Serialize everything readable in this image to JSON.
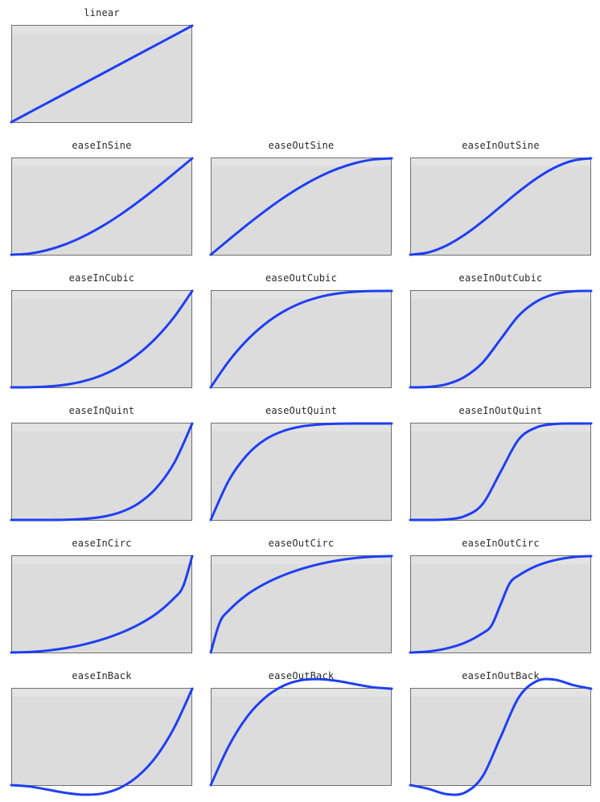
{
  "chart_style": {
    "plot_fill": "#dcdcdc",
    "plot_band": "#e3e3e3",
    "plot_border": "#6e6e6e",
    "curve_color": "#1f3ff2",
    "title_color": "#2b2b2b"
  },
  "chart_data": [
    {
      "type": "line",
      "title": "linear",
      "grid": false,
      "xlim": [
        0,
        1
      ],
      "ylim": [
        0,
        1
      ],
      "row": 0,
      "col": 0,
      "series": [
        {
          "x": [
            0,
            0.25,
            0.5,
            0.75,
            1
          ],
          "y": [
            0,
            0.25,
            0.5,
            0.75,
            1
          ]
        }
      ]
    },
    {
      "type": "line",
      "title": "easeInSine",
      "grid": false,
      "xlim": [
        0,
        1
      ],
      "ylim": [
        0,
        1
      ],
      "row": 1,
      "col": 0,
      "series": [
        {
          "x": [
            0,
            0.1,
            0.2,
            0.3,
            0.4,
            0.5,
            0.6,
            0.7,
            0.8,
            0.9,
            1
          ],
          "y": [
            0,
            0.012,
            0.049,
            0.109,
            0.191,
            0.293,
            0.412,
            0.546,
            0.691,
            0.844,
            1
          ]
        }
      ]
    },
    {
      "type": "line",
      "title": "easeOutSine",
      "grid": false,
      "xlim": [
        0,
        1
      ],
      "ylim": [
        0,
        1
      ],
      "row": 1,
      "col": 1,
      "series": [
        {
          "x": [
            0,
            0.1,
            0.2,
            0.3,
            0.4,
            0.5,
            0.6,
            0.7,
            0.8,
            0.9,
            1
          ],
          "y": [
            0,
            0.156,
            0.309,
            0.454,
            0.588,
            0.707,
            0.809,
            0.891,
            0.951,
            0.988,
            1
          ]
        }
      ]
    },
    {
      "type": "line",
      "title": "easeInOutSine",
      "grid": false,
      "xlim": [
        0,
        1
      ],
      "ylim": [
        0,
        1
      ],
      "row": 1,
      "col": 2,
      "series": [
        {
          "x": [
            0,
            0.1,
            0.2,
            0.3,
            0.4,
            0.5,
            0.6,
            0.7,
            0.8,
            0.9,
            1
          ],
          "y": [
            0,
            0.024,
            0.095,
            0.206,
            0.345,
            0.5,
            0.655,
            0.794,
            0.905,
            0.976,
            1
          ]
        }
      ]
    },
    {
      "type": "line",
      "title": "easeInCubic",
      "grid": false,
      "xlim": [
        0,
        1
      ],
      "ylim": [
        0,
        1
      ],
      "row": 2,
      "col": 0,
      "series": [
        {
          "x": [
            0,
            0.1,
            0.2,
            0.3,
            0.4,
            0.5,
            0.6,
            0.7,
            0.8,
            0.9,
            1
          ],
          "y": [
            0,
            0.001,
            0.008,
            0.027,
            0.064,
            0.125,
            0.216,
            0.343,
            0.512,
            0.729,
            1
          ]
        }
      ]
    },
    {
      "type": "line",
      "title": "easeOutCubic",
      "grid": false,
      "xlim": [
        0,
        1
      ],
      "ylim": [
        0,
        1
      ],
      "row": 2,
      "col": 1,
      "series": [
        {
          "x": [
            0,
            0.1,
            0.2,
            0.3,
            0.4,
            0.5,
            0.6,
            0.7,
            0.8,
            0.9,
            1
          ],
          "y": [
            0,
            0.271,
            0.488,
            0.657,
            0.784,
            0.875,
            0.936,
            0.973,
            0.992,
            0.999,
            1
          ]
        }
      ]
    },
    {
      "type": "line",
      "title": "easeInOutCubic",
      "grid": false,
      "xlim": [
        0,
        1
      ],
      "ylim": [
        0,
        1
      ],
      "row": 2,
      "col": 2,
      "series": [
        {
          "x": [
            0,
            0.1,
            0.2,
            0.3,
            0.4,
            0.5,
            0.6,
            0.7,
            0.8,
            0.9,
            1
          ],
          "y": [
            0,
            0.004,
            0.032,
            0.108,
            0.256,
            0.5,
            0.744,
            0.892,
            0.968,
            0.996,
            1
          ]
        }
      ]
    },
    {
      "type": "line",
      "title": "easeInQuint",
      "grid": false,
      "xlim": [
        0,
        1
      ],
      "ylim": [
        0,
        1
      ],
      "row": 3,
      "col": 0,
      "series": [
        {
          "x": [
            0,
            0.1,
            0.2,
            0.3,
            0.4,
            0.5,
            0.6,
            0.7,
            0.8,
            0.9,
            1
          ],
          "y": [
            0,
            0,
            0,
            0.002,
            0.01,
            0.031,
            0.078,
            0.168,
            0.328,
            0.59,
            1
          ]
        }
      ]
    },
    {
      "type": "line",
      "title": "easeOutQuint",
      "grid": false,
      "xlim": [
        0,
        1
      ],
      "ylim": [
        0,
        1
      ],
      "row": 3,
      "col": 1,
      "series": [
        {
          "x": [
            0,
            0.1,
            0.2,
            0.3,
            0.4,
            0.5,
            0.6,
            0.7,
            0.8,
            0.9,
            1
          ],
          "y": [
            0,
            0.41,
            0.672,
            0.832,
            0.922,
            0.969,
            0.99,
            0.998,
            1,
            1,
            1
          ]
        }
      ]
    },
    {
      "type": "line",
      "title": "easeInOutQuint",
      "grid": false,
      "xlim": [
        0,
        1
      ],
      "ylim": [
        0,
        1
      ],
      "row": 3,
      "col": 2,
      "series": [
        {
          "x": [
            0,
            0.1,
            0.2,
            0.3,
            0.4,
            0.5,
            0.6,
            0.7,
            0.8,
            0.9,
            1
          ],
          "y": [
            0,
            0,
            0.005,
            0.039,
            0.164,
            0.5,
            0.836,
            0.961,
            0.995,
            1,
            1
          ]
        }
      ]
    },
    {
      "type": "line",
      "title": "easeInCirc",
      "grid": false,
      "xlim": [
        0,
        1
      ],
      "ylim": [
        0,
        1
      ],
      "row": 4,
      "col": 0,
      "series": [
        {
          "x": [
            0,
            0.1,
            0.2,
            0.3,
            0.4,
            0.5,
            0.6,
            0.7,
            0.8,
            0.9,
            0.95,
            1
          ],
          "y": [
            0,
            0.005,
            0.02,
            0.046,
            0.083,
            0.134,
            0.2,
            0.286,
            0.4,
            0.564,
            0.688,
            1
          ]
        }
      ]
    },
    {
      "type": "line",
      "title": "easeOutCirc",
      "grid": false,
      "xlim": [
        0,
        1
      ],
      "ylim": [
        0,
        1
      ],
      "row": 4,
      "col": 1,
      "series": [
        {
          "x": [
            0,
            0.05,
            0.1,
            0.2,
            0.3,
            0.4,
            0.5,
            0.6,
            0.7,
            0.8,
            0.9,
            1
          ],
          "y": [
            0,
            0.312,
            0.436,
            0.6,
            0.714,
            0.8,
            0.866,
            0.917,
            0.954,
            0.98,
            0.995,
            1
          ]
        }
      ]
    },
    {
      "type": "line",
      "title": "easeInOutCirc",
      "grid": false,
      "xlim": [
        0,
        1
      ],
      "ylim": [
        0,
        1
      ],
      "row": 4,
      "col": 2,
      "series": [
        {
          "x": [
            0,
            0.1,
            0.2,
            0.3,
            0.4,
            0.45,
            0.5,
            0.55,
            0.6,
            0.7,
            0.8,
            0.9,
            1
          ],
          "y": [
            0,
            0.01,
            0.042,
            0.1,
            0.2,
            0.282,
            0.5,
            0.718,
            0.8,
            0.9,
            0.958,
            0.99,
            1
          ]
        }
      ]
    },
    {
      "type": "line",
      "title": "easeInBack",
      "grid": false,
      "xlim": [
        0,
        1
      ],
      "ylim": [
        -0.15,
        1
      ],
      "row": 5,
      "col": 0,
      "series": [
        {
          "x": [
            0,
            0.1,
            0.2,
            0.3,
            0.4,
            0.5,
            0.6,
            0.7,
            0.8,
            0.9,
            1
          ],
          "y": [
            0,
            -0.014,
            -0.046,
            -0.08,
            -0.099,
            -0.088,
            -0.029,
            0.094,
            0.294,
            0.594,
            1
          ]
        }
      ]
    },
    {
      "type": "line",
      "title": "easeOutBack",
      "grid": false,
      "xlim": [
        0,
        1
      ],
      "ylim": [
        0,
        1.15
      ],
      "row": 5,
      "col": 1,
      "series": [
        {
          "x": [
            0,
            0.1,
            0.2,
            0.3,
            0.4,
            0.5,
            0.6,
            0.7,
            0.8,
            0.9,
            1
          ],
          "y": [
            0,
            0.406,
            0.706,
            0.906,
            1.029,
            1.088,
            1.099,
            1.08,
            1.046,
            1.014,
            1
          ]
        }
      ]
    },
    {
      "type": "line",
      "title": "easeInOutBack",
      "grid": false,
      "xlim": [
        0,
        1
      ],
      "ylim": [
        -0.1,
        1.1
      ],
      "row": 5,
      "col": 2,
      "series": [
        {
          "x": [
            0,
            0.1,
            0.2,
            0.3,
            0.4,
            0.5,
            0.6,
            0.7,
            0.8,
            0.9,
            1
          ],
          "y": [
            0,
            -0.038,
            -0.093,
            -0.079,
            0.09,
            0.5,
            0.91,
            1.079,
            1.093,
            1.038,
            1
          ]
        }
      ]
    }
  ]
}
